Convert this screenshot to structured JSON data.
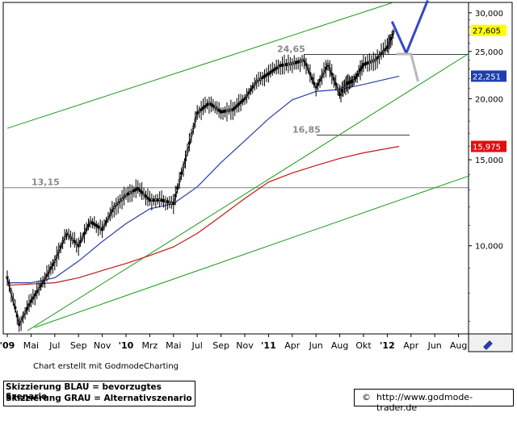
{
  "chart_data": {
    "type": "candlestick",
    "x_labels": [
      "'09",
      "Mai",
      "Jul",
      "Sep",
      "Nov",
      "'10",
      "Mrz",
      "Mai",
      "Jul",
      "Sep",
      "Nov",
      "'11",
      "Apr",
      "Jun",
      "Aug",
      "Okt",
      "'12",
      "Apr",
      "Jun",
      "Aug"
    ],
    "y_ticks": [
      "30,000",
      "25,000",
      "20,000",
      "15,000",
      "10,000"
    ],
    "y_tick_values": [
      30,
      25,
      20,
      15,
      10
    ],
    "ylim": [
      6.6,
      31.5
    ],
    "y_scale": "log",
    "price_badges": [
      {
        "label": "27,605",
        "value": 27.605,
        "color": "#000000",
        "bg": "#ffff00"
      },
      {
        "label": "22,251",
        "value": 22.251,
        "color": "#ffffff",
        "bg": "#1f3fb0"
      },
      {
        "label": "15,975",
        "value": 15.975,
        "color": "#ffffff",
        "bg": "#e01010"
      }
    ],
    "levels": [
      {
        "label": "24,65",
        "value": 24.65
      },
      {
        "label": "16,85",
        "value": 16.85
      },
      {
        "label": "13,15",
        "value": 13.15
      }
    ],
    "series": [
      {
        "name": "Kurs",
        "color": "#000000",
        "x": [
          0,
          0.5,
          1,
          1.5,
          2,
          2.5,
          3,
          3.5,
          4,
          4.5,
          5,
          5.5,
          6,
          6.5,
          7,
          7.5,
          8,
          8.5,
          9,
          9.5,
          10,
          10.5,
          11,
          11.5,
          12,
          12.5,
          13,
          13.5,
          14,
          14.3,
          14.6,
          15,
          15.5,
          16,
          16.3
        ],
        "y": [
          8.6,
          6.9,
          7.7,
          8.4,
          9.3,
          10.6,
          10.0,
          11.2,
          10.8,
          12.0,
          12.7,
          13.1,
          12.4,
          12.4,
          12.2,
          15.0,
          18.7,
          19.6,
          18.8,
          19.0,
          20.0,
          21.7,
          22.5,
          23.4,
          23.6,
          24.0,
          21.0,
          23.5,
          20.4,
          21.5,
          21.8,
          23.5,
          24.0,
          25.5,
          27.6
        ]
      },
      {
        "name": "SMA kurz",
        "color": "#2a3ea8",
        "x": [
          0,
          1,
          2,
          3,
          4,
          5,
          6,
          7,
          8,
          9,
          10,
          11,
          12,
          13,
          14,
          15,
          16.5
        ],
        "y": [
          8.4,
          8.4,
          8.6,
          9.3,
          10.2,
          11.1,
          11.9,
          12.2,
          13.2,
          14.8,
          16.4,
          18.2,
          19.9,
          20.7,
          20.9,
          21.4,
          22.25
        ]
      },
      {
        "name": "SMA lang",
        "color": "#c01818",
        "x": [
          0,
          1,
          2,
          3,
          4,
          5,
          6,
          7,
          8,
          9,
          10,
          11,
          12,
          13,
          14,
          15,
          16.5
        ],
        "y": [
          8.3,
          8.35,
          8.4,
          8.6,
          8.9,
          9.2,
          9.55,
          9.95,
          10.6,
          11.5,
          12.5,
          13.5,
          14.1,
          14.6,
          15.1,
          15.5,
          15.975
        ]
      }
    ],
    "scenarios": [
      {
        "name": "Szenario Blau",
        "color": "#3646c8",
        "x": [
          16.2,
          16.8,
          17.7
        ],
        "y": [
          28.8,
          24.8,
          31.8
        ]
      },
      {
        "name": "Szenario Grau",
        "color": "#b8b8b8",
        "x": [
          16.4,
          17.0,
          17.3
        ],
        "y": [
          24.7,
          24.7,
          21.7
        ]
      }
    ],
    "trendlines": [
      {
        "color": "#1a9c1a",
        "x": [
          0,
          16.25
        ],
        "y": [
          17.4,
          31.5
        ]
      },
      {
        "color": "#1a9c1a",
        "x": [
          0.85,
          19.8
        ],
        "y": [
          6.7,
          25.4
        ]
      },
      {
        "color": "#1a9c1a",
        "x": [
          1.15,
          19.8
        ],
        "y": [
          6.8,
          14.1
        ]
      }
    ],
    "grid": false,
    "legend": "none"
  },
  "footer": {
    "credit": "Chart erstellt mit GodmodeCharting",
    "scenario_blue": "Skizzierung BLAU = bevorzugtes Szenario",
    "scenario_grey": "Skizzierung GRAU = Alternativszenario",
    "copyright": "©",
    "url": "http://www.godmode-trader.de"
  },
  "icons": {
    "corner": "chart-pen-icon"
  }
}
